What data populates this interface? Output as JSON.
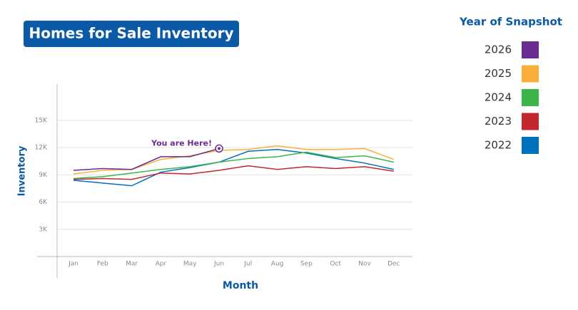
{
  "chart_data": {
    "type": "line",
    "title": "Homes for Sale Inventory",
    "y_label": "Inventory",
    "x_label": "Month",
    "legend_title": "Year of Snapshot",
    "annotation": "You are Here!",
    "categories": [
      "Jan",
      "Feb",
      "Mar",
      "Apr",
      "May",
      "Jun",
      "Jul",
      "Aug",
      "Sep",
      "Oct",
      "Nov",
      "Dec"
    ],
    "series": [
      {
        "name": "2026",
        "color": "#6a2c91",
        "values": [
          9500,
          9700,
          9600,
          11000,
          11000,
          11900,
          null,
          null,
          null,
          null,
          null,
          null
        ]
      },
      {
        "name": "2025",
        "color": "#f9b03a",
        "values": [
          9100,
          9500,
          9600,
          10700,
          11100,
          11700,
          11800,
          12200,
          11800,
          11800,
          11900,
          10700
        ]
      },
      {
        "name": "2024",
        "color": "#3bb54a",
        "values": [
          8600,
          8800,
          9200,
          9600,
          9900,
          10400,
          10800,
          11000,
          11500,
          10900,
          11100,
          10400
        ]
      },
      {
        "name": "2023",
        "color": "#c1272d",
        "values": [
          8500,
          8600,
          8500,
          9200,
          9100,
          9500,
          10000,
          9600,
          9900,
          9700,
          9900,
          9400
        ]
      },
      {
        "name": "2022",
        "color": "#0071bc",
        "values": [
          8400,
          8100,
          7800,
          9300,
          9800,
          10400,
          11600,
          11800,
          11400,
          10800,
          10300,
          9600
        ]
      }
    ],
    "ylim": [
      0,
      19000
    ],
    "yticks": [
      {
        "value": 3000,
        "label": "3K"
      },
      {
        "value": 6000,
        "label": "6K"
      },
      {
        "value": 9000,
        "label": "9K"
      },
      {
        "value": 12000,
        "label": "12K"
      },
      {
        "value": 15000,
        "label": "15K"
      }
    ],
    "grid": true,
    "legend_position": "right"
  }
}
